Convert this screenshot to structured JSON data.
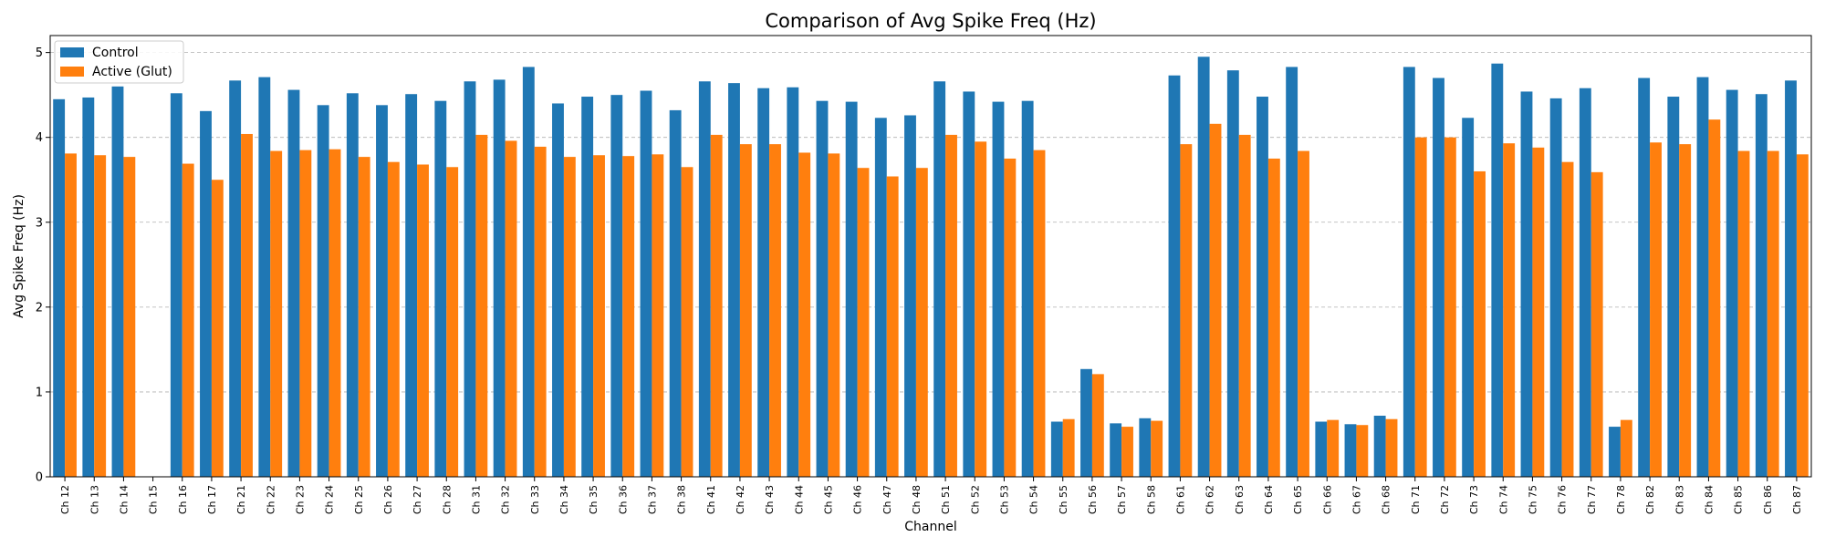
{
  "chart_data": {
    "type": "bar",
    "title": "Comparison of Avg Spike Freq (Hz)",
    "xlabel": "Channel",
    "ylabel": "Avg Spike Freq (Hz)",
    "ylim": [
      0,
      5.2
    ],
    "yticks": [
      "0",
      "1",
      "2",
      "3",
      "4",
      "5"
    ],
    "grid": "y dashed",
    "legend_position": "top-left",
    "colors": {
      "control": "#1f77b4",
      "active": "#ff7f0e"
    },
    "categories": [
      "Ch 12",
      "Ch 13",
      "Ch 14",
      "Ch 15",
      "Ch 16",
      "Ch 17",
      "Ch 21",
      "Ch 22",
      "Ch 23",
      "Ch 24",
      "Ch 25",
      "Ch 26",
      "Ch 27",
      "Ch 28",
      "Ch 31",
      "Ch 32",
      "Ch 33",
      "Ch 34",
      "Ch 35",
      "Ch 36",
      "Ch 37",
      "Ch 38",
      "Ch 41",
      "Ch 42",
      "Ch 43",
      "Ch 44",
      "Ch 45",
      "Ch 46",
      "Ch 47",
      "Ch 48",
      "Ch 51",
      "Ch 52",
      "Ch 53",
      "Ch 54",
      "Ch 55",
      "Ch 56",
      "Ch 57",
      "Ch 58",
      "Ch 61",
      "Ch 62",
      "Ch 63",
      "Ch 64",
      "Ch 65",
      "Ch 66",
      "Ch 67",
      "Ch 68",
      "Ch 71",
      "Ch 72",
      "Ch 73",
      "Ch 74",
      "Ch 75",
      "Ch 76",
      "Ch 77",
      "Ch 78",
      "Ch 82",
      "Ch 83",
      "Ch 84",
      "Ch 85",
      "Ch 86",
      "Ch 87"
    ],
    "series": [
      {
        "name": "Control",
        "values": [
          4.45,
          4.47,
          4.6,
          0.0,
          4.52,
          4.31,
          4.67,
          4.71,
          4.56,
          4.38,
          4.52,
          4.38,
          4.51,
          4.43,
          4.66,
          4.68,
          4.83,
          4.4,
          4.48,
          4.5,
          4.55,
          4.32,
          4.66,
          4.64,
          4.58,
          4.59,
          4.43,
          4.42,
          4.23,
          4.26,
          4.66,
          4.54,
          4.42,
          4.43,
          0.65,
          1.27,
          0.63,
          0.69,
          4.73,
          4.95,
          4.79,
          4.48,
          4.83,
          0.65,
          0.62,
          0.72,
          4.83,
          4.7,
          4.23,
          4.87,
          4.54,
          4.46,
          4.58,
          0.59,
          4.7,
          4.48,
          4.71,
          4.56,
          4.51,
          4.67
        ]
      },
      {
        "name": "Active (Glut)",
        "values": [
          3.81,
          3.79,
          3.77,
          0.0,
          3.69,
          3.5,
          4.04,
          3.84,
          3.85,
          3.86,
          3.77,
          3.71,
          3.68,
          3.65,
          4.03,
          3.96,
          3.89,
          3.77,
          3.79,
          3.78,
          3.8,
          3.65,
          4.03,
          3.92,
          3.92,
          3.82,
          3.81,
          3.64,
          3.54,
          3.64,
          4.03,
          3.95,
          3.75,
          3.85,
          0.68,
          1.21,
          0.59,
          0.66,
          3.92,
          4.16,
          4.03,
          3.75,
          3.84,
          0.67,
          0.61,
          0.68,
          4.0,
          4.0,
          3.6,
          3.93,
          3.88,
          3.71,
          3.59,
          0.67,
          3.94,
          3.92,
          4.21,
          3.84,
          3.84,
          3.8
        ]
      }
    ]
  }
}
